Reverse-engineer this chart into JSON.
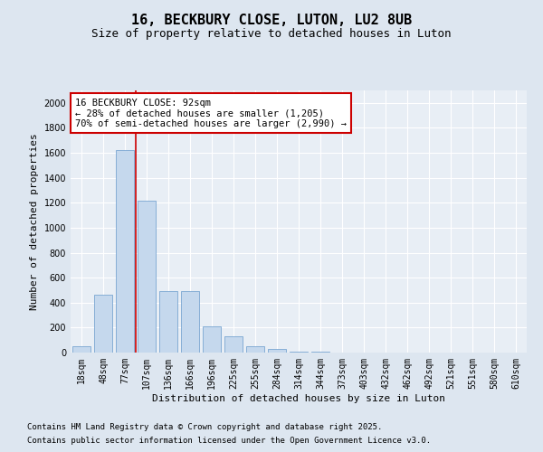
{
  "title": "16, BECKBURY CLOSE, LUTON, LU2 8UB",
  "subtitle": "Size of property relative to detached houses in Luton",
  "xlabel": "Distribution of detached houses by size in Luton",
  "ylabel": "Number of detached properties",
  "categories": [
    "18sqm",
    "48sqm",
    "77sqm",
    "107sqm",
    "136sqm",
    "166sqm",
    "196sqm",
    "225sqm",
    "255sqm",
    "284sqm",
    "314sqm",
    "344sqm",
    "373sqm",
    "403sqm",
    "432sqm",
    "462sqm",
    "492sqm",
    "521sqm",
    "551sqm",
    "580sqm",
    "610sqm"
  ],
  "values": [
    50,
    460,
    1620,
    1220,
    490,
    490,
    210,
    130,
    50,
    30,
    10,
    5,
    3,
    2,
    1,
    1,
    0,
    0,
    0,
    0,
    0
  ],
  "bar_color": "#c5d8ed",
  "bar_edge_color": "#6699cc",
  "vline_bin_index": 2,
  "vline_color": "#cc0000",
  "annotation_text": "16 BECKBURY CLOSE: 92sqm\n← 28% of detached houses are smaller (1,205)\n70% of semi-detached houses are larger (2,990) →",
  "annotation_box_color": "#ffffff",
  "annotation_box_edge_color": "#cc0000",
  "ylim": [
    0,
    2100
  ],
  "yticks": [
    0,
    200,
    400,
    600,
    800,
    1000,
    1200,
    1400,
    1600,
    1800,
    2000
  ],
  "bg_color": "#dde6f0",
  "plot_bg_color": "#e8eef5",
  "footer_line1": "Contains HM Land Registry data © Crown copyright and database right 2025.",
  "footer_line2": "Contains public sector information licensed under the Open Government Licence v3.0.",
  "title_fontsize": 11,
  "subtitle_fontsize": 9,
  "axis_label_fontsize": 8,
  "tick_fontsize": 7,
  "annotation_fontsize": 7.5,
  "footer_fontsize": 6.5
}
